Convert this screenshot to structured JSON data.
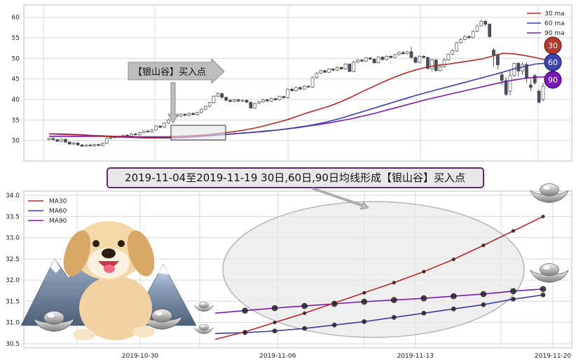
{
  "colors": {
    "ma30": "#b22a2a",
    "ma60": "#3a3fa0",
    "ma90": "#7a1aa8",
    "grid": "#d9d9d9",
    "up_candle": "#ffffff",
    "down_candle": "#4a4f66",
    "panel_bg": "#ffffff"
  },
  "annotations": {
    "banner_text": "2019-11-04至2019-11-19 30日,60日,90日均线形成【银山谷】买入点",
    "callout_text": "【银山谷】买入点",
    "badges": [
      "30",
      "60",
      "90"
    ]
  },
  "icons": [
    "dog-mascot",
    "mountain-icon",
    "silver-ingot-icon"
  ],
  "chart_data": [
    {
      "type": "candlestick",
      "title": "",
      "ylim": [
        25,
        63
      ],
      "yticks": [
        30,
        35,
        40,
        45,
        50,
        55,
        60
      ],
      "grid": true,
      "legend_position": "top-right",
      "legend": [
        "30 ma",
        "60 ma",
        "90 ma"
      ],
      "candles": [
        [
          30.2,
          30.5,
          30.0,
          30.6
        ],
        [
          30.5,
          30.2,
          30.0,
          30.7
        ],
        [
          30.2,
          29.8,
          29.6,
          30.4
        ],
        [
          29.8,
          30.3,
          29.6,
          30.5
        ],
        [
          30.3,
          29.6,
          29.4,
          30.4
        ],
        [
          29.6,
          29.1,
          29.0,
          29.8
        ],
        [
          29.1,
          29.4,
          28.9,
          29.6
        ],
        [
          29.4,
          28.9,
          28.7,
          29.5
        ],
        [
          28.9,
          28.6,
          28.4,
          29.1
        ],
        [
          28.6,
          28.9,
          28.4,
          29.1
        ],
        [
          28.9,
          28.7,
          28.5,
          29.1
        ],
        [
          28.7,
          29.0,
          28.5,
          29.2
        ],
        [
          29.0,
          28.8,
          28.6,
          29.2
        ],
        [
          28.8,
          29.3,
          28.6,
          29.5
        ],
        [
          29.3,
          30.5,
          29.1,
          30.7
        ],
        [
          30.5,
          30.7,
          30.2,
          30.9
        ],
        [
          30.7,
          31.0,
          30.5,
          31.2
        ],
        [
          31.0,
          30.8,
          30.6,
          31.2
        ],
        [
          30.8,
          31.3,
          30.6,
          31.5
        ],
        [
          31.3,
          31.1,
          30.9,
          31.5
        ],
        [
          31.1,
          31.6,
          30.9,
          31.8
        ],
        [
          31.6,
          31.4,
          31.2,
          31.8
        ],
        [
          31.4,
          31.9,
          31.2,
          32.1
        ],
        [
          31.9,
          32.3,
          31.7,
          32.5
        ],
        [
          32.3,
          32.1,
          31.9,
          32.6
        ],
        [
          32.1,
          32.6,
          31.9,
          32.8
        ],
        [
          32.6,
          33.5,
          32.4,
          33.7
        ],
        [
          33.5,
          33.2,
          33.0,
          33.8
        ],
        [
          33.2,
          34.2,
          33.0,
          34.4
        ],
        [
          34.2,
          35.0,
          34.0,
          35.3
        ],
        [
          35.0,
          36.2,
          34.8,
          36.5
        ],
        [
          36.2,
          35.9,
          35.6,
          36.5
        ],
        [
          35.9,
          36.4,
          35.7,
          36.6
        ],
        [
          36.4,
          36.1,
          35.9,
          36.6
        ],
        [
          36.1,
          36.6,
          35.9,
          36.8
        ],
        [
          36.6,
          36.3,
          36.1,
          36.8
        ],
        [
          36.3,
          36.8,
          36.1,
          37.0
        ],
        [
          36.8,
          37.6,
          36.6,
          37.8
        ],
        [
          37.6,
          38.3,
          37.4,
          38.5
        ],
        [
          38.3,
          39.2,
          38.1,
          39.4
        ],
        [
          39.2,
          40.8,
          39.0,
          41.0
        ],
        [
          40.8,
          41.4,
          40.6,
          41.7
        ],
        [
          41.4,
          40.5,
          40.2,
          41.6
        ],
        [
          40.5,
          39.8,
          39.5,
          40.7
        ],
        [
          39.8,
          39.5,
          39.3,
          40.0
        ],
        [
          39.5,
          39.9,
          39.3,
          40.1
        ],
        [
          39.9,
          39.6,
          39.4,
          40.1
        ],
        [
          39.6,
          39.8,
          39.4,
          40.0
        ],
        [
          39.8,
          39.3,
          39.1,
          40.0
        ],
        [
          39.3,
          37.9,
          37.7,
          39.5
        ],
        [
          37.9,
          39.0,
          37.7,
          39.2
        ],
        [
          39.0,
          39.4,
          38.8,
          39.6
        ],
        [
          39.4,
          39.9,
          39.2,
          40.1
        ],
        [
          39.9,
          39.6,
          39.4,
          40.1
        ],
        [
          39.6,
          40.2,
          39.4,
          40.4
        ],
        [
          40.2,
          39.9,
          39.7,
          40.4
        ],
        [
          39.9,
          40.7,
          39.7,
          40.9
        ],
        [
          40.7,
          40.4,
          40.2,
          40.9
        ],
        [
          40.4,
          42.5,
          40.2,
          42.7
        ],
        [
          42.5,
          42.1,
          41.9,
          42.8
        ],
        [
          42.1,
          42.9,
          41.9,
          43.1
        ],
        [
          42.9,
          42.5,
          42.3,
          43.1
        ],
        [
          42.5,
          43.2,
          42.3,
          43.4
        ],
        [
          43.2,
          43.0,
          42.8,
          43.4
        ],
        [
          43.0,
          45.3,
          42.8,
          45.6
        ],
        [
          45.3,
          46.4,
          45.1,
          46.6
        ],
        [
          46.4,
          47.0,
          46.2,
          47.2
        ],
        [
          47.0,
          46.6,
          46.4,
          47.2
        ],
        [
          46.6,
          47.4,
          46.4,
          47.6
        ],
        [
          47.4,
          47.1,
          46.9,
          47.6
        ],
        [
          47.1,
          47.8,
          46.9,
          48.0
        ],
        [
          47.8,
          47.4,
          47.2,
          48.0
        ],
        [
          47.4,
          48.6,
          47.2,
          48.8
        ],
        [
          48.6,
          46.8,
          46.6,
          48.8
        ],
        [
          46.8,
          49.1,
          46.6,
          49.4
        ],
        [
          49.1,
          49.6,
          48.9,
          49.8
        ],
        [
          49.6,
          49.3,
          49.1,
          49.8
        ],
        [
          49.3,
          50.1,
          49.1,
          50.3
        ],
        [
          50.1,
          49.8,
          49.6,
          50.3
        ],
        [
          49.8,
          48.9,
          48.7,
          50.0
        ],
        [
          48.9,
          50.3,
          48.7,
          50.5
        ],
        [
          50.3,
          49.7,
          49.5,
          50.5
        ],
        [
          49.7,
          50.5,
          49.5,
          50.7
        ],
        [
          50.5,
          50.2,
          50.0,
          50.7
        ],
        [
          50.2,
          50.9,
          50.0,
          51.1
        ],
        [
          50.9,
          51.4,
          50.7,
          51.6
        ],
        [
          51.4,
          51.1,
          50.9,
          51.7
        ],
        [
          51.1,
          51.6,
          50.9,
          51.8
        ],
        [
          51.6,
          50.2,
          50.0,
          52.8
        ],
        [
          50.2,
          49.0,
          48.8,
          50.5
        ],
        [
          49.0,
          50.5,
          48.8,
          50.7
        ],
        [
          50.5,
          50.2,
          50.0,
          50.7
        ],
        [
          50.2,
          47.5,
          47.3,
          50.4
        ],
        [
          47.5,
          49.6,
          46.8,
          49.9
        ],
        [
          49.6,
          47.0,
          46.8,
          49.8
        ],
        [
          47.0,
          47.9,
          46.8,
          48.6
        ],
        [
          47.9,
          49.6,
          47.7,
          50.0
        ],
        [
          49.6,
          51.0,
          49.4,
          51.2
        ],
        [
          51.0,
          51.8,
          50.8,
          52.2
        ],
        [
          51.8,
          53.8,
          51.6,
          54.0
        ],
        [
          53.8,
          54.6,
          53.6,
          54.9
        ],
        [
          54.6,
          55.3,
          54.4,
          55.6
        ],
        [
          55.3,
          55.0,
          54.8,
          55.6
        ],
        [
          55.0,
          56.6,
          54.8,
          56.8
        ],
        [
          56.6,
          57.9,
          56.4,
          58.2
        ],
        [
          57.9,
          59.0,
          57.7,
          59.3
        ],
        [
          59.0,
          58.3,
          57.8,
          59.3
        ],
        [
          58.3,
          55.3,
          55.0,
          58.5
        ],
        [
          52.0,
          50.8,
          48.0,
          52.5
        ],
        [
          50.8,
          48.4,
          47.3,
          51.0
        ],
        [
          46.0,
          44.6,
          43.5,
          46.5
        ],
        [
          44.6,
          41.2,
          40.8,
          45.5
        ],
        [
          42.0,
          45.8,
          41.0,
          47.0
        ],
        [
          45.8,
          48.8,
          45.5,
          49.0
        ],
        [
          48.8,
          46.9,
          45.5,
          49.0
        ],
        [
          46.9,
          48.5,
          46.0,
          49.0
        ],
        [
          48.5,
          45.3,
          44.0,
          49.0
        ],
        [
          43.5,
          42.9,
          42.0,
          45.0
        ],
        [
          45.8,
          44.0,
          43.5,
          46.2
        ],
        [
          42.0,
          39.3,
          39.0,
          42.5
        ],
        [
          40.0,
          43.2,
          39.5,
          44.0
        ]
      ],
      "ma30": [
        31.6,
        31.5,
        31.4,
        31.3,
        31.2,
        31.1,
        31.0,
        30.9,
        30.9,
        30.8,
        30.8,
        30.9,
        31.0,
        31.1,
        31.3,
        31.5,
        31.8,
        32.1,
        32.5,
        33.0,
        33.6,
        34.3,
        35.0,
        35.9,
        36.8,
        37.6,
        38.4,
        39.4,
        40.6,
        41.9,
        43.1,
        44.3,
        45.4,
        46.4,
        47.2,
        47.9,
        48.3,
        48.6,
        49.0,
        49.4,
        49.8,
        50.5,
        51.2,
        51.1,
        50.7,
        50.2,
        49.6
      ],
      "ma60": [
        31.6,
        31.6,
        31.5,
        31.4,
        31.2,
        31.1,
        31.0,
        31.0,
        30.9,
        30.9,
        30.9,
        30.9,
        31.0,
        31.1,
        31.2,
        31.3,
        31.4,
        31.6,
        31.8,
        32.0,
        32.2,
        32.5,
        32.8,
        33.2,
        33.6,
        34.1,
        34.7,
        35.4,
        36.2,
        37.0,
        37.8,
        38.6,
        39.4,
        40.2,
        41.0,
        41.7,
        42.4,
        43.1,
        43.8,
        44.5,
        45.2,
        45.9,
        46.6,
        47.4,
        48.0,
        48.6,
        48.8
      ],
      "ma90": [
        31.0,
        31.0,
        31.0,
        31.0,
        31.0,
        31.0,
        30.9,
        30.8,
        30.7,
        30.6,
        30.6,
        30.6,
        30.7,
        30.8,
        31.0,
        31.2,
        31.4,
        31.6,
        31.8,
        32.0,
        32.3,
        32.5,
        32.8,
        33.1,
        33.5,
        33.9,
        34.3,
        34.8,
        35.3,
        35.9,
        36.5,
        37.2,
        37.9,
        38.6,
        39.3,
        40.0,
        40.6,
        41.2,
        41.8,
        42.4,
        43.0,
        43.6,
        44.2,
        44.7,
        45.1,
        45.4,
        45.5
      ]
    },
    {
      "type": "line",
      "title": "",
      "xlabel": "",
      "ylabel": "",
      "x": [
        "2019-11-04",
        "2019-11-05",
        "2019-11-06",
        "2019-11-07",
        "2019-11-08",
        "2019-11-11",
        "2019-11-12",
        "2019-11-13",
        "2019-11-14",
        "2019-11-15",
        "2019-11-18",
        "2019-11-19"
      ],
      "xticks": [
        "2019-10-30",
        "2019-11-06",
        "2019-11-13",
        "2019-11-20"
      ],
      "yticks": [
        "30.5",
        "31.0",
        "31.5",
        "32.0",
        "32.5",
        "33.0",
        "33.5",
        "34.0"
      ],
      "ylim": [
        30.4,
        34.1
      ],
      "grid": true,
      "legend_position": "top-left",
      "series": [
        {
          "name": "MA30",
          "color": "#b22a2a",
          "values": [
            30.6,
            30.78,
            31.0,
            31.22,
            31.46,
            31.7,
            31.94,
            32.2,
            32.49,
            32.82,
            33.16,
            33.5
          ]
        },
        {
          "name": "MA60",
          "color": "#3a3fa0",
          "values": [
            30.74,
            30.76,
            30.8,
            30.86,
            30.94,
            31.02,
            31.12,
            31.22,
            31.32,
            31.42,
            31.55,
            31.65
          ]
        },
        {
          "name": "MA90",
          "color": "#7a1aa8",
          "values": [
            31.22,
            31.28,
            31.34,
            31.39,
            31.44,
            31.49,
            31.53,
            31.57,
            31.62,
            31.67,
            31.74,
            31.79
          ]
        }
      ]
    }
  ]
}
